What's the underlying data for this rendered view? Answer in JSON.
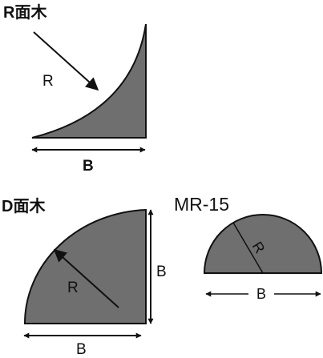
{
  "r_profile": {
    "title": "R面木",
    "radius_label": "R",
    "width_label": "B"
  },
  "d_profile": {
    "title": "D面木",
    "radius_label": "R",
    "width_label": "B",
    "height_label": "B"
  },
  "mr15_profile": {
    "title": "MR-15",
    "radius_label": "R",
    "width_label": "B"
  },
  "colors": {
    "shape_fill": "#6f6f6f",
    "outline": "#111111",
    "background": "#ffffff"
  }
}
